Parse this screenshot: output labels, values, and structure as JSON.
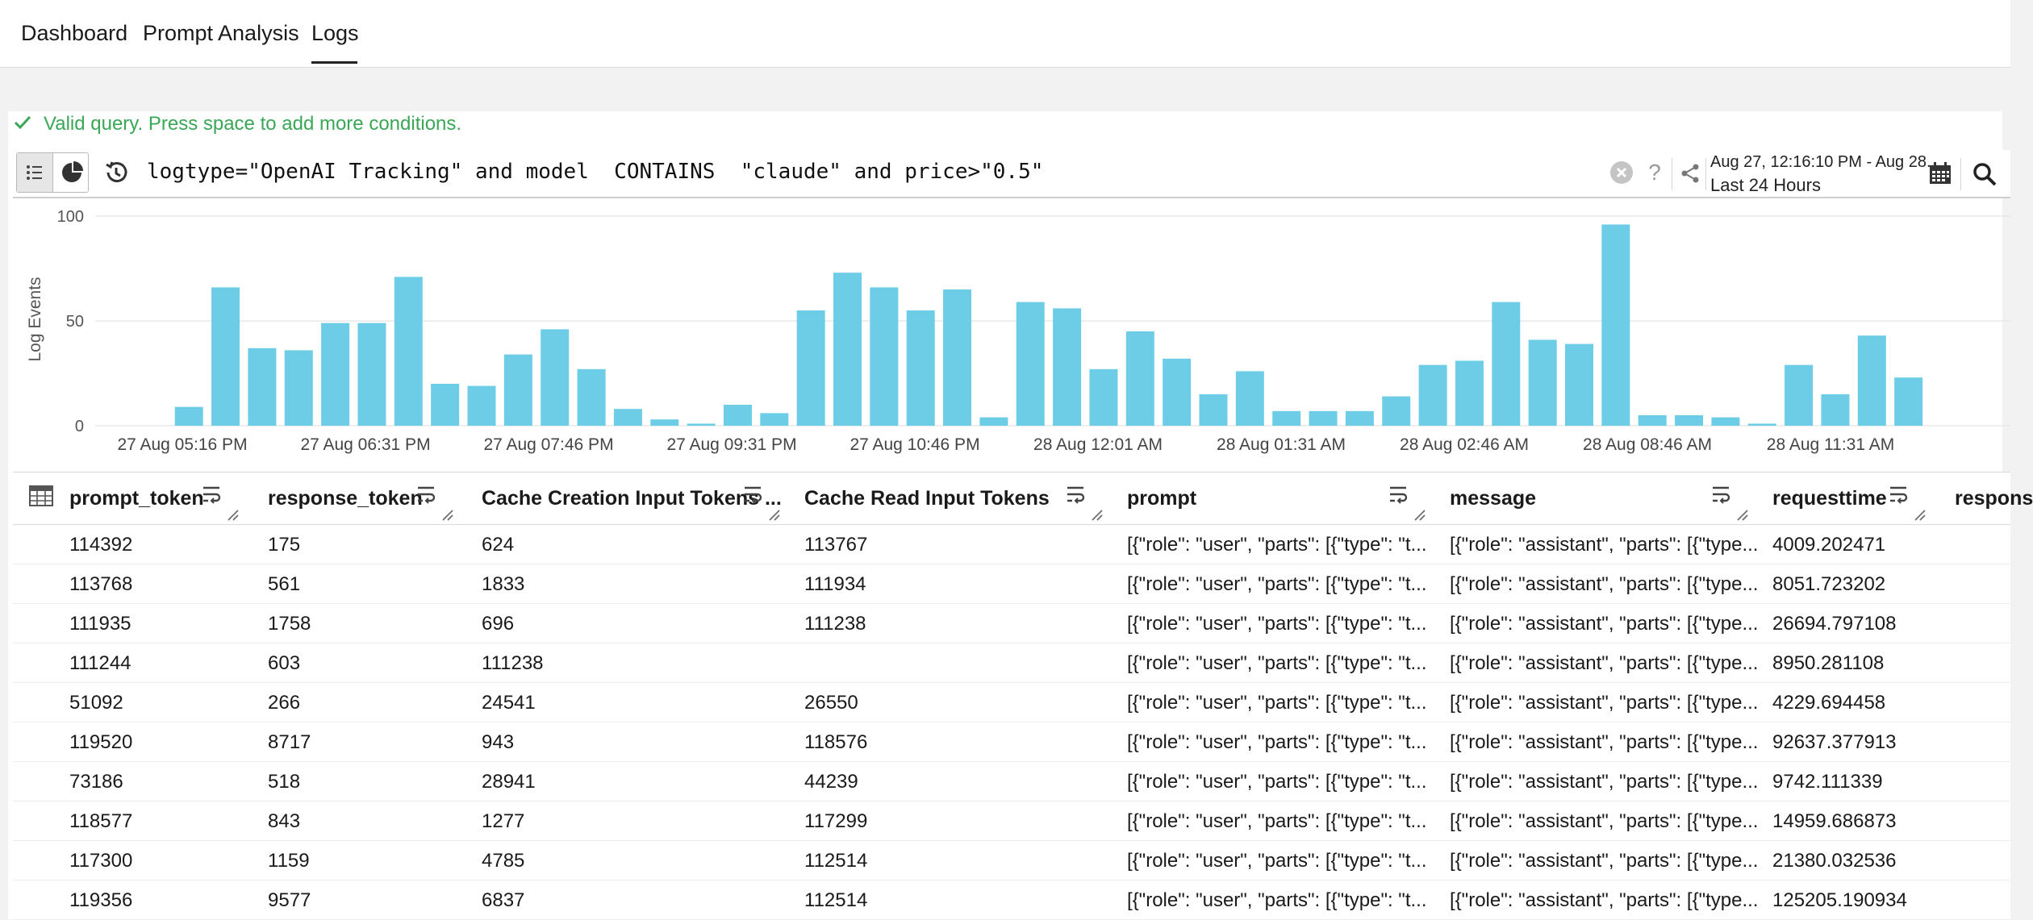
{
  "nav": {
    "tabs": [
      {
        "label": "Dashboard",
        "active": false
      },
      {
        "label": "Prompt Analysis",
        "active": false
      },
      {
        "label": "Logs",
        "active": true
      }
    ]
  },
  "query": {
    "status": "Valid query. Press space to add more conditions.",
    "text": "logtype=\"OpenAI Tracking\" and model  CONTAINS  \"claude\" and price>\"0.5\"",
    "date_range": "Aug 27, 12:16:10 PM - Aug 28...",
    "period": "Last 24 Hours",
    "help_label": "?"
  },
  "colors": {
    "bar": "#6dcde6",
    "valid": "#3aa757",
    "grid": "#e8e8e8"
  },
  "chart_data": {
    "type": "bar",
    "ylabel": "Log Events",
    "ylim": [
      0,
      100
    ],
    "yticks": [
      0,
      50,
      100
    ],
    "xtick_labels": [
      "27 Aug 05:16 PM",
      "27 Aug 06:31 PM",
      "27 Aug 07:46 PM",
      "27 Aug 09:31 PM",
      "27 Aug 10:46 PM",
      "28 Aug 12:01 AM",
      "28 Aug 01:31 AM",
      "28 Aug 02:46 AM",
      "28 Aug 08:46 AM",
      "28 Aug 11:31 AM"
    ],
    "values": [
      0,
      0,
      9,
      66,
      37,
      36,
      49,
      49,
      71,
      20,
      19,
      34,
      46,
      27,
      8,
      3,
      1,
      10,
      6,
      55,
      73,
      66,
      55,
      65,
      4,
      59,
      56,
      27,
      45,
      32,
      15,
      26,
      7,
      7,
      7,
      14,
      29,
      31,
      59,
      41,
      39,
      96,
      5,
      5,
      4,
      1,
      29,
      15,
      43,
      23
    ]
  },
  "table": {
    "columns": [
      "prompt_token",
      "response_token",
      "Cache Creation Input Tokens ...",
      "Cache Read Input Tokens",
      "prompt",
      "message",
      "requesttime",
      "respons"
    ],
    "rows": [
      [
        "114392",
        "175",
        "624",
        "113767",
        "[{\"role\": \"user\", \"parts\": [{\"type\": \"t...",
        "[{\"role\": \"assistant\", \"parts\": [{\"type...",
        "4009.202471"
      ],
      [
        "113768",
        "561",
        "1833",
        "111934",
        "[{\"role\": \"user\", \"parts\": [{\"type\": \"t...",
        "[{\"role\": \"assistant\", \"parts\": [{\"type...",
        "8051.723202"
      ],
      [
        "111935",
        "1758",
        "696",
        "111238",
        "[{\"role\": \"user\", \"parts\": [{\"type\": \"t...",
        "[{\"role\": \"assistant\", \"parts\": [{\"type...",
        "26694.797108"
      ],
      [
        "111244",
        "603",
        "111238",
        "",
        "[{\"role\": \"user\", \"parts\": [{\"type\": \"t...",
        "[{\"role\": \"assistant\", \"parts\": [{\"type...",
        "8950.281108"
      ],
      [
        "51092",
        "266",
        "24541",
        "26550",
        "[{\"role\": \"user\", \"parts\": [{\"type\": \"t...",
        "[{\"role\": \"assistant\", \"parts\": [{\"type...",
        "4229.694458"
      ],
      [
        "119520",
        "8717",
        "943",
        "118576",
        "[{\"role\": \"user\", \"parts\": [{\"type\": \"t...",
        "[{\"role\": \"assistant\", \"parts\": [{\"type...",
        "92637.377913"
      ],
      [
        "73186",
        "518",
        "28941",
        "44239",
        "[{\"role\": \"user\", \"parts\": [{\"type\": \"t...",
        "[{\"role\": \"assistant\", \"parts\": [{\"type...",
        "9742.111339"
      ],
      [
        "118577",
        "843",
        "1277",
        "117299",
        "[{\"role\": \"user\", \"parts\": [{\"type\": \"t...",
        "[{\"role\": \"assistant\", \"parts\": [{\"type...",
        "14959.686873"
      ],
      [
        "117300",
        "1159",
        "4785",
        "112514",
        "[{\"role\": \"user\", \"parts\": [{\"type\": \"t...",
        "[{\"role\": \"assistant\", \"parts\": [{\"type...",
        "21380.032536"
      ],
      [
        "119356",
        "9577",
        "6837",
        "112514",
        "[{\"role\": \"user\", \"parts\": [{\"type\": \"t...",
        "[{\"role\": \"assistant\", \"parts\": [{\"type...",
        "125205.190934"
      ]
    ]
  }
}
